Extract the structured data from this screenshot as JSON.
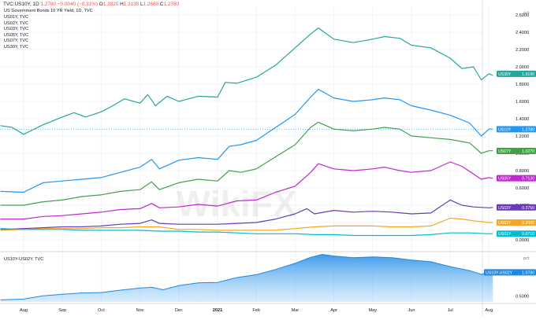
{
  "header": {
    "symbol": "TVC:US10Y, 1D",
    "price": "1.2780",
    "change": "−0.0040 (−0.31%)",
    "ohlc": [
      {
        "k": "O",
        "v": "1.2820"
      },
      {
        "k": "H",
        "v": "1.3130"
      },
      {
        "k": "L",
        "v": "1.2680"
      },
      {
        "k": "C",
        "v": "1.2780"
      }
    ]
  },
  "colors": {
    "US30Y": "#26a69a",
    "US10Y": "#2196f3",
    "US07Y": "#43a047",
    "US05Y": "#c026d3",
    "US03Y": "#673ab7",
    "US02Y": "#f5a623",
    "US01Y": "#00bcd4",
    "spread": "#1e88e5",
    "grid": "#f0f3fa",
    "axis_text": "#131722"
  },
  "chart_data": [
    {
      "type": "line",
      "title": "US Government Bonds 10 YR Yield, 1D, TVC",
      "legend": [
        "US01Y, TVC",
        "US02Y, TVC",
        "US03Y, TVC",
        "US05Y, TVC",
        "US07Y, TVC",
        "US30Y, TVC"
      ],
      "y_unit": "pct",
      "ylim": [
        -0.1,
        2.7
      ],
      "y_ticks": [
        "2.6000",
        "2.4000",
        "2.2000",
        "2.0000",
        "1.8000",
        "1.6000",
        "1.4000",
        "1.2000",
        "1.0000",
        "0.8000",
        "0.6000",
        "0.4000",
        "0.2000",
        "0.0000"
      ],
      "x_ticks": [
        {
          "label": "Aug",
          "x": 0.0
        },
        {
          "label": "Sep",
          "x": 1.0
        },
        {
          "label": "Oct",
          "x": 2.0
        },
        {
          "label": "Nov",
          "x": 3.0
        },
        {
          "label": "Dec",
          "x": 4.0
        },
        {
          "label": "2021",
          "x": 5.0
        },
        {
          "label": "Feb",
          "x": 6.0
        },
        {
          "label": "Mar",
          "x": 7.0
        },
        {
          "label": "Apr",
          "x": 8.0
        },
        {
          "label": "May",
          "x": 9.0
        },
        {
          "label": "Jun",
          "x": 10.0
        },
        {
          "label": "Jul",
          "x": 11.0
        },
        {
          "label": "Aug",
          "x": 12.0
        }
      ],
      "series": [
        {
          "name": "US30Y",
          "label": "1.9190",
          "points": [
            [
              -0.6,
              1.32
            ],
            [
              -0.3,
              1.3
            ],
            [
              0,
              1.22
            ],
            [
              0.5,
              1.33
            ],
            [
              1,
              1.42
            ],
            [
              1.3,
              1.47
            ],
            [
              1.6,
              1.42
            ],
            [
              2,
              1.48
            ],
            [
              2.3,
              1.55
            ],
            [
              2.6,
              1.63
            ],
            [
              3,
              1.58
            ],
            [
              3.2,
              1.68
            ],
            [
              3.4,
              1.55
            ],
            [
              3.7,
              1.66
            ],
            [
              4,
              1.6
            ],
            [
              4.5,
              1.66
            ],
            [
              5,
              1.65
            ],
            [
              5.2,
              1.82
            ],
            [
              5.5,
              1.81
            ],
            [
              6,
              1.88
            ],
            [
              6.5,
              2.02
            ],
            [
              7,
              2.22
            ],
            [
              7.4,
              2.38
            ],
            [
              7.6,
              2.45
            ],
            [
              8,
              2.32
            ],
            [
              8.5,
              2.28
            ],
            [
              9,
              2.32
            ],
            [
              9.3,
              2.35
            ],
            [
              9.7,
              2.33
            ],
            [
              10,
              2.25
            ],
            [
              10.5,
              2.22
            ],
            [
              11,
              2.1
            ],
            [
              11.3,
              1.98
            ],
            [
              11.6,
              2.0
            ],
            [
              11.8,
              1.85
            ],
            [
              12,
              1.92
            ],
            [
              12.1,
              1.9
            ]
          ]
        },
        {
          "name": "US10Y",
          "label": "1.2780",
          "points": [
            [
              -0.6,
              0.56
            ],
            [
              0,
              0.55
            ],
            [
              0.5,
              0.66
            ],
            [
              1,
              0.68
            ],
            [
              1.5,
              0.7
            ],
            [
              2,
              0.72
            ],
            [
              2.5,
              0.78
            ],
            [
              3,
              0.84
            ],
            [
              3.3,
              0.93
            ],
            [
              3.5,
              0.82
            ],
            [
              4,
              0.92
            ],
            [
              4.5,
              0.95
            ],
            [
              5,
              0.93
            ],
            [
              5.3,
              1.08
            ],
            [
              5.6,
              1.1
            ],
            [
              6,
              1.15
            ],
            [
              6.5,
              1.3
            ],
            [
              7,
              1.45
            ],
            [
              7.4,
              1.65
            ],
            [
              7.6,
              1.74
            ],
            [
              8,
              1.64
            ],
            [
              8.5,
              1.6
            ],
            [
              9,
              1.62
            ],
            [
              9.3,
              1.64
            ],
            [
              9.7,
              1.62
            ],
            [
              10,
              1.55
            ],
            [
              10.5,
              1.5
            ],
            [
              11,
              1.44
            ],
            [
              11.5,
              1.35
            ],
            [
              11.8,
              1.2
            ],
            [
              12,
              1.28
            ],
            [
              12.1,
              1.28
            ]
          ]
        },
        {
          "name": "US07Y",
          "label": "1.0270",
          "points": [
            [
              -0.6,
              0.4
            ],
            [
              0,
              0.4
            ],
            [
              0.5,
              0.44
            ],
            [
              1,
              0.46
            ],
            [
              1.5,
              0.5
            ],
            [
              2,
              0.52
            ],
            [
              2.5,
              0.56
            ],
            [
              3,
              0.58
            ],
            [
              3.3,
              0.67
            ],
            [
              3.5,
              0.58
            ],
            [
              4,
              0.66
            ],
            [
              4.5,
              0.7
            ],
            [
              5,
              0.68
            ],
            [
              5.3,
              0.8
            ],
            [
              5.6,
              0.78
            ],
            [
              6,
              0.82
            ],
            [
              6.5,
              0.96
            ],
            [
              7,
              1.1
            ],
            [
              7.4,
              1.3
            ],
            [
              7.6,
              1.36
            ],
            [
              8,
              1.28
            ],
            [
              8.5,
              1.26
            ],
            [
              9,
              1.28
            ],
            [
              9.3,
              1.3
            ],
            [
              9.7,
              1.28
            ],
            [
              10,
              1.2
            ],
            [
              10.5,
              1.18
            ],
            [
              11,
              1.16
            ],
            [
              11.5,
              1.12
            ],
            [
              11.8,
              1.0
            ],
            [
              12,
              1.03
            ],
            [
              12.1,
              1.03
            ]
          ]
        },
        {
          "name": "US05Y",
          "label": "0.7130",
          "points": [
            [
              -0.6,
              0.24
            ],
            [
              0,
              0.24
            ],
            [
              0.5,
              0.27
            ],
            [
              1,
              0.28
            ],
            [
              1.5,
              0.3
            ],
            [
              2,
              0.32
            ],
            [
              2.5,
              0.35
            ],
            [
              3,
              0.36
            ],
            [
              3.3,
              0.42
            ],
            [
              3.5,
              0.37
            ],
            [
              4,
              0.38
            ],
            [
              4.5,
              0.41
            ],
            [
              5,
              0.39
            ],
            [
              5.5,
              0.45
            ],
            [
              6,
              0.46
            ],
            [
              6.5,
              0.55
            ],
            [
              7,
              0.62
            ],
            [
              7.4,
              0.78
            ],
            [
              7.6,
              0.88
            ],
            [
              8,
              0.82
            ],
            [
              8.5,
              0.8
            ],
            [
              9,
              0.82
            ],
            [
              9.3,
              0.84
            ],
            [
              9.7,
              0.8
            ],
            [
              10,
              0.78
            ],
            [
              10.5,
              0.8
            ],
            [
              11,
              0.9
            ],
            [
              11.3,
              0.85
            ],
            [
              11.6,
              0.76
            ],
            [
              11.8,
              0.7
            ],
            [
              12,
              0.72
            ],
            [
              12.1,
              0.71
            ]
          ]
        },
        {
          "name": "US03Y",
          "label": "0.3750",
          "points": [
            [
              -0.6,
              0.12
            ],
            [
              0,
              0.13
            ],
            [
              0.5,
              0.14
            ],
            [
              1,
              0.15
            ],
            [
              1.5,
              0.15
            ],
            [
              2,
              0.16
            ],
            [
              2.5,
              0.18
            ],
            [
              3,
              0.19
            ],
            [
              3.3,
              0.23
            ],
            [
              3.5,
              0.19
            ],
            [
              4,
              0.18
            ],
            [
              4.5,
              0.18
            ],
            [
              5,
              0.18
            ],
            [
              5.5,
              0.19
            ],
            [
              6,
              0.2
            ],
            [
              6.5,
              0.24
            ],
            [
              7,
              0.3
            ],
            [
              7.3,
              0.36
            ],
            [
              7.5,
              0.3
            ],
            [
              8,
              0.34
            ],
            [
              8.5,
              0.32
            ],
            [
              9,
              0.33
            ],
            [
              9.5,
              0.32
            ],
            [
              10,
              0.3
            ],
            [
              10.5,
              0.31
            ],
            [
              11,
              0.46
            ],
            [
              11.3,
              0.4
            ],
            [
              11.6,
              0.38
            ],
            [
              12,
              0.37
            ],
            [
              12.1,
              0.375
            ]
          ]
        },
        {
          "name": "US02Y",
          "label": "0.2000",
          "points": [
            [
              -0.6,
              0.11
            ],
            [
              0,
              0.12
            ],
            [
              0.5,
              0.13
            ],
            [
              1,
              0.13
            ],
            [
              1.5,
              0.13
            ],
            [
              2,
              0.14
            ],
            [
              2.5,
              0.14
            ],
            [
              3,
              0.15
            ],
            [
              3.5,
              0.15
            ],
            [
              4,
              0.12
            ],
            [
              4.5,
              0.12
            ],
            [
              5,
              0.11
            ],
            [
              5.5,
              0.11
            ],
            [
              6,
              0.11
            ],
            [
              6.5,
              0.11
            ],
            [
              7,
              0.13
            ],
            [
              7.5,
              0.15
            ],
            [
              8,
              0.16
            ],
            [
              8.5,
              0.16
            ],
            [
              9,
              0.16
            ],
            [
              9.5,
              0.15
            ],
            [
              10,
              0.15
            ],
            [
              10.5,
              0.16
            ],
            [
              11,
              0.25
            ],
            [
              11.3,
              0.24
            ],
            [
              11.6,
              0.22
            ],
            [
              12,
              0.2
            ],
            [
              12.1,
              0.2
            ]
          ]
        },
        {
          "name": "US01Y",
          "label": "0.0710",
          "points": [
            [
              -0.6,
              0.13
            ],
            [
              0,
              0.12
            ],
            [
              0.5,
              0.12
            ],
            [
              1,
              0.12
            ],
            [
              1.5,
              0.11
            ],
            [
              2,
              0.11
            ],
            [
              2.5,
              0.11
            ],
            [
              3,
              0.11
            ],
            [
              3.5,
              0.1
            ],
            [
              4,
              0.1
            ],
            [
              4.5,
              0.09
            ],
            [
              5,
              0.09
            ],
            [
              5.5,
              0.08
            ],
            [
              6,
              0.07
            ],
            [
              6.5,
              0.07
            ],
            [
              7,
              0.07
            ],
            [
              7.5,
              0.06
            ],
            [
              8,
              0.06
            ],
            [
              8.5,
              0.05
            ],
            [
              9,
              0.05
            ],
            [
              9.5,
              0.05
            ],
            [
              10,
              0.05
            ],
            [
              10.5,
              0.06
            ],
            [
              11,
              0.08
            ],
            [
              11.5,
              0.08
            ],
            [
              12,
              0.07
            ],
            [
              12.1,
              0.071
            ]
          ]
        }
      ],
      "reference_lines": [
        {
          "series": "US10Y",
          "value": 1.278,
          "style": "dotted"
        }
      ]
    },
    {
      "type": "area",
      "title": "US10Y-US02Y, TVC",
      "y_unit": "pct",
      "ylim": [
        0.35,
        1.55
      ],
      "y_ticks": [
        "0.5000"
      ],
      "series": [
        {
          "name": "US10Y-US02Y",
          "label": "1.0780",
          "points": [
            [
              -0.6,
              0.4
            ],
            [
              0,
              0.42
            ],
            [
              0.5,
              0.5
            ],
            [
              1,
              0.54
            ],
            [
              1.5,
              0.57
            ],
            [
              2,
              0.58
            ],
            [
              2.5,
              0.64
            ],
            [
              3,
              0.69
            ],
            [
              3.3,
              0.71
            ],
            [
              3.6,
              0.65
            ],
            [
              4,
              0.75
            ],
            [
              4.5,
              0.82
            ],
            [
              5,
              0.83
            ],
            [
              5.5,
              0.95
            ],
            [
              6,
              1.02
            ],
            [
              6.5,
              1.15
            ],
            [
              7,
              1.3
            ],
            [
              7.4,
              1.45
            ],
            [
              7.7,
              1.52
            ],
            [
              8,
              1.48
            ],
            [
              8.5,
              1.44
            ],
            [
              9,
              1.46
            ],
            [
              9.5,
              1.44
            ],
            [
              10,
              1.38
            ],
            [
              10.5,
              1.34
            ],
            [
              11,
              1.22
            ],
            [
              11.5,
              1.12
            ],
            [
              11.8,
              1.03
            ],
            [
              12,
              1.08
            ],
            [
              12.1,
              1.078
            ]
          ]
        }
      ]
    }
  ]
}
